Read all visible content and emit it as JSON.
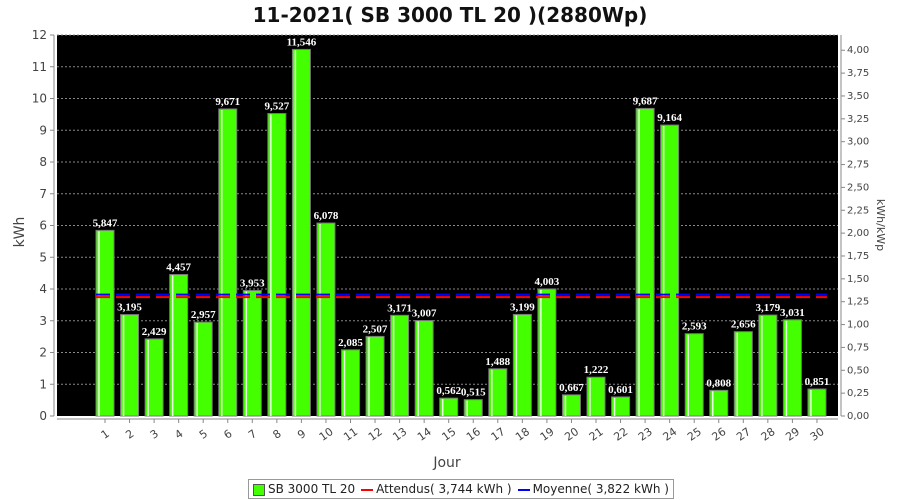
{
  "chart_data": {
    "type": "bar",
    "title": "11-2021( SB 3000 TL 20 )(2880Wp)",
    "xlabel": "Jour",
    "ylabel": "kWh",
    "y2label": "kWh/kWp",
    "ylim": [
      0,
      12
    ],
    "y2lim": [
      0,
      4.1667
    ],
    "yticks": [
      "0",
      "1",
      "2",
      "3",
      "4",
      "5",
      "6",
      "7",
      "8",
      "9",
      "10",
      "11",
      "12"
    ],
    "y2ticks": [
      "0,00",
      "0,25",
      "0,50",
      "0,75",
      "1,00",
      "1,25",
      "1,50",
      "1,75",
      "2,00",
      "2,25",
      "2,50",
      "2,75",
      "3,00",
      "3,25",
      "3,50",
      "3,75",
      "4,00"
    ],
    "categories": [
      "1",
      "2",
      "3",
      "4",
      "5",
      "6",
      "7",
      "8",
      "9",
      "10",
      "11",
      "12",
      "13",
      "14",
      "15",
      "16",
      "17",
      "18",
      "19",
      "20",
      "21",
      "22",
      "23",
      "24",
      "25",
      "26",
      "27",
      "28",
      "29",
      "30"
    ],
    "values": [
      5.847,
      3.195,
      2.429,
      4.457,
      2.957,
      9.671,
      3.953,
      9.527,
      11.546,
      6.078,
      2.085,
      2.507,
      3.171,
      3.007,
      0.562,
      0.515,
      1.488,
      3.199,
      4.003,
      0.667,
      1.222,
      0.601,
      9.687,
      9.164,
      2.593,
      0.808,
      2.656,
      3.179,
      3.031,
      0.851
    ],
    "value_labels": [
      "5,847",
      "3,195",
      "2,429",
      "4,457",
      "2,957",
      "9,671",
      "3,953",
      "9,527",
      "11,546",
      "6,078",
      "2,085",
      "2,507",
      "3,171",
      "3,007",
      "0,562",
      "0,515",
      "1,488",
      "3,199",
      "4,003",
      "0,667",
      "1,222",
      "0,601",
      "9,687",
      "9,164",
      "2,593",
      "0,808",
      "2,656",
      "3,179",
      "3,031",
      "0,851"
    ],
    "series": [
      {
        "name": "SB 3000 TL 20",
        "type": "bar",
        "color": "#44ff00"
      },
      {
        "name": "Attendus( 3,744 kWh )",
        "type": "line",
        "value": 3.744,
        "color": "#ff0000"
      },
      {
        "name": "Moyenne( 3,822 kWh )",
        "type": "line",
        "value": 3.822,
        "color": "#0000ff"
      }
    ],
    "grid": true,
    "legend": "bottom"
  }
}
